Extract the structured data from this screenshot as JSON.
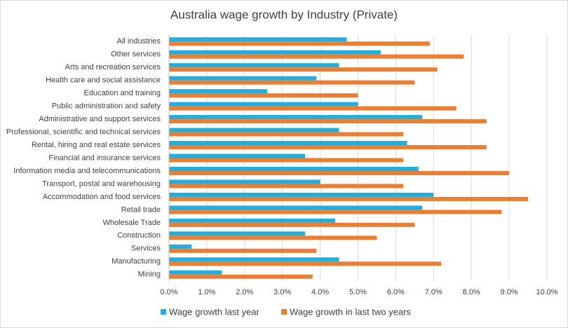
{
  "chart_data": {
    "type": "hbar",
    "title": "Australia wage growth by Industry (Private)",
    "categories": [
      "All industries",
      "Other services",
      "Arts and recreation services",
      "Health care and social assistance",
      "Education and training",
      "Public administration and safety",
      "Administrative and support services",
      "Professional, scientific and technical services",
      "Rental, hiring and real estate services",
      "Financial and insurance services",
      "Information media and telecommunications",
      "Transport, postal and warehousing",
      "Accommodation and food services",
      "Retail trade",
      "Wholesale Trade",
      "Construction",
      "Services",
      "Manufacturing",
      "Mining"
    ],
    "series": [
      {
        "name": "Wage growth last year",
        "color": "#1fb0e0",
        "values": [
          4.7,
          5.6,
          4.5,
          3.9,
          2.6,
          5.0,
          6.7,
          4.5,
          6.3,
          3.6,
          6.6,
          4.0,
          7.0,
          6.7,
          4.4,
          3.6,
          0.6,
          4.5,
          1.4
        ]
      },
      {
        "name": "Wage growth in last two years",
        "color": "#ed7d31",
        "values": [
          6.9,
          7.8,
          7.1,
          6.5,
          5.0,
          7.6,
          8.4,
          6.2,
          8.4,
          6.2,
          9.0,
          6.2,
          9.5,
          8.8,
          6.5,
          5.5,
          3.9,
          7.2,
          3.8
        ]
      }
    ],
    "xlim": [
      0,
      10
    ],
    "xticks": [
      {
        "value": 0,
        "label": "0.0%"
      },
      {
        "value": 1,
        "label": "1.0%"
      },
      {
        "value": 2,
        "label": "2.0%"
      },
      {
        "value": 3,
        "label": "3.0%"
      },
      {
        "value": 4,
        "label": "4.0%"
      },
      {
        "value": 5,
        "label": "5.0%"
      },
      {
        "value": 6,
        "label": "6.0%"
      },
      {
        "value": 7,
        "label": "7.0%"
      },
      {
        "value": 8,
        "label": "8.0%"
      },
      {
        "value": 9,
        "label": "9.0%"
      },
      {
        "value": 10,
        "label": "10.0%"
      }
    ],
    "grid": true,
    "legend": "bottom"
  }
}
